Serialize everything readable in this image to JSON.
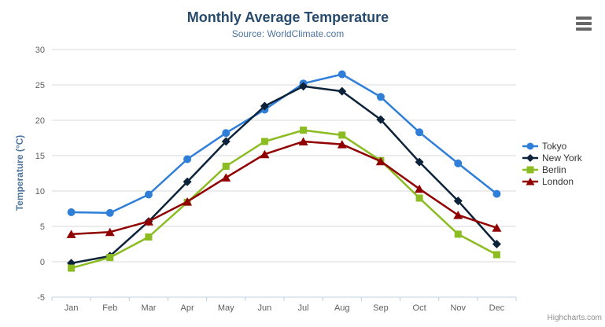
{
  "chart_data": {
    "type": "line",
    "title": "Monthly Average Temperature",
    "subtitle": "Source: WorldClimate.com",
    "categories": [
      "Jan",
      "Feb",
      "Mar",
      "Apr",
      "May",
      "Jun",
      "Jul",
      "Aug",
      "Sep",
      "Oct",
      "Nov",
      "Dec"
    ],
    "xlabel": "",
    "ylabel": "Temperature (°C)",
    "ylim": [
      -5,
      30
    ],
    "ytick_interval": 5,
    "grid": true,
    "legend_position": "right",
    "series": [
      {
        "name": "Tokyo",
        "color": "#2f7ed8",
        "marker": "circle",
        "values": [
          7.0,
          6.9,
          9.5,
          14.5,
          18.2,
          21.5,
          25.2,
          26.5,
          23.3,
          18.3,
          13.9,
          9.6
        ]
      },
      {
        "name": "New York",
        "color": "#0d233a",
        "marker": "diamond",
        "values": [
          -0.2,
          0.8,
          5.7,
          11.3,
          17.0,
          22.0,
          24.8,
          24.1,
          20.1,
          14.1,
          8.6,
          2.5
        ]
      },
      {
        "name": "Berlin",
        "color": "#8bbc21",
        "marker": "square",
        "values": [
          -0.9,
          0.6,
          3.5,
          8.4,
          13.5,
          17.0,
          18.6,
          17.9,
          14.3,
          9.0,
          3.9,
          1.0
        ]
      },
      {
        "name": "London",
        "color": "#910000",
        "marker": "triangle",
        "values": [
          3.9,
          4.2,
          5.7,
          8.5,
          11.9,
          15.2,
          17.0,
          16.6,
          14.2,
          10.3,
          6.6,
          4.8
        ]
      }
    ]
  },
  "colors": {
    "title": "#274b6d",
    "subtitle": "#4d759e",
    "axis_title": "#4d759e",
    "tick_label": "#606060",
    "gridline": "#d8d8d8",
    "axis_line": "#c0d0e0",
    "legend_text": "#333333",
    "menu_icon": "#666666",
    "credits_text": "#909090"
  },
  "icons": {
    "context_menu": "hamburger-icon"
  },
  "credits": {
    "label": "Highcharts.com"
  }
}
